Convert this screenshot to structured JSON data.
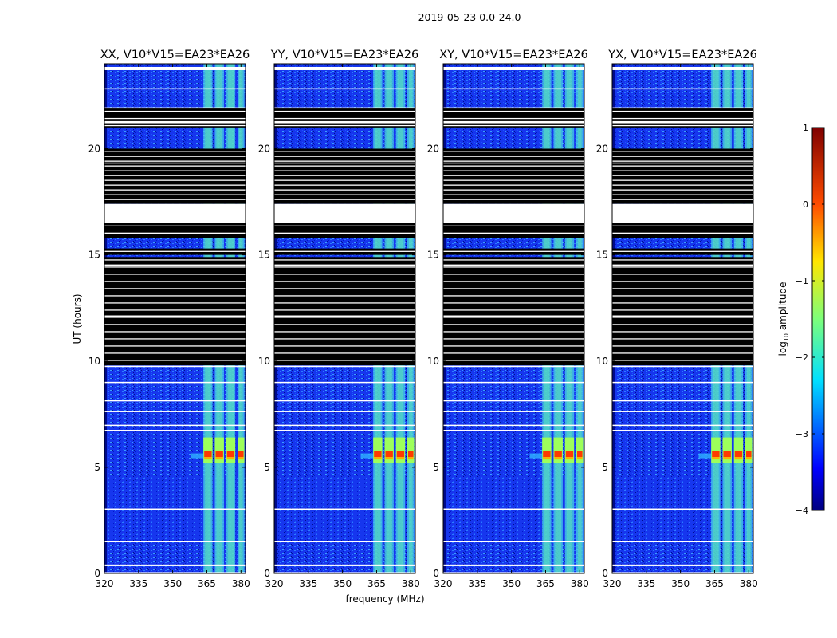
{
  "figure_title": "2019-05-23 0.0-24.0",
  "chart_data": {
    "type": "heatmap",
    "title": "2019-05-23 0.0-24.0",
    "xlabel": "frequency (MHz)",
    "ylabel": "UT (hours)",
    "xlim": [
      320,
      382
    ],
    "ylim": [
      0,
      24
    ],
    "x_ticks": [
      320,
      335,
      350,
      365,
      380
    ],
    "y_ticks": [
      0,
      5,
      10,
      15,
      20
    ],
    "panels": [
      {
        "title": "XX, V10*V15=EA23*EA26",
        "polarization": "XX",
        "is_cross": false
      },
      {
        "title": "YY, V10*V15=EA23*EA26",
        "polarization": "YY",
        "is_cross": false
      },
      {
        "title": "XY, V10*V15=EA23*EA26",
        "polarization": "XY",
        "is_cross": true
      },
      {
        "title": "YX, V10*V15=EA23*EA26",
        "polarization": "YX",
        "is_cross": true
      }
    ],
    "colorbar": {
      "label": "log10 amplitude",
      "label_main": "log",
      "label_sub": "10",
      "label_rest": " amplitude",
      "range": [
        -4,
        1
      ],
      "ticks": [
        "1",
        "0",
        "−1",
        "−2",
        "−3",
        "−4"
      ],
      "tick_values": [
        1,
        0,
        -1,
        -2,
        -3,
        -4
      ],
      "colormap": "jet"
    },
    "rfi_bands_mhz": [
      [
        363.5,
        367.5
      ],
      [
        368.5,
        372.5
      ],
      [
        373.5,
        377.5
      ],
      [
        378.5,
        381.5
      ]
    ],
    "blank_ut_ranges_hours": [
      [
        23.7,
        23.85
      ],
      [
        22.8,
        22.85
      ],
      [
        21.9,
        21.95
      ],
      [
        21.2,
        21.3
      ],
      [
        19.3,
        19.35
      ],
      [
        16.5,
        17.4
      ],
      [
        14.5,
        14.55
      ],
      [
        12.1,
        12.15
      ],
      [
        9.72,
        9.78
      ],
      [
        8.98,
        9.02
      ],
      [
        8.1,
        8.16
      ],
      [
        7.62,
        7.66
      ],
      [
        6.95,
        7.0
      ],
      [
        6.72,
        6.76
      ],
      [
        3.02,
        3.06
      ],
      [
        1.47,
        1.54
      ],
      [
        0.34,
        0.42
      ],
      [
        0.0,
        0.06
      ]
    ],
    "flagged_ut_ranges_hours": [
      [
        15.8,
        16.5
      ],
      [
        15.0,
        15.3
      ],
      [
        9.8,
        14.9
      ],
      [
        17.4,
        20.0
      ],
      [
        21.0,
        21.9
      ]
    ],
    "flare_ut_hours": 5.6
  }
}
